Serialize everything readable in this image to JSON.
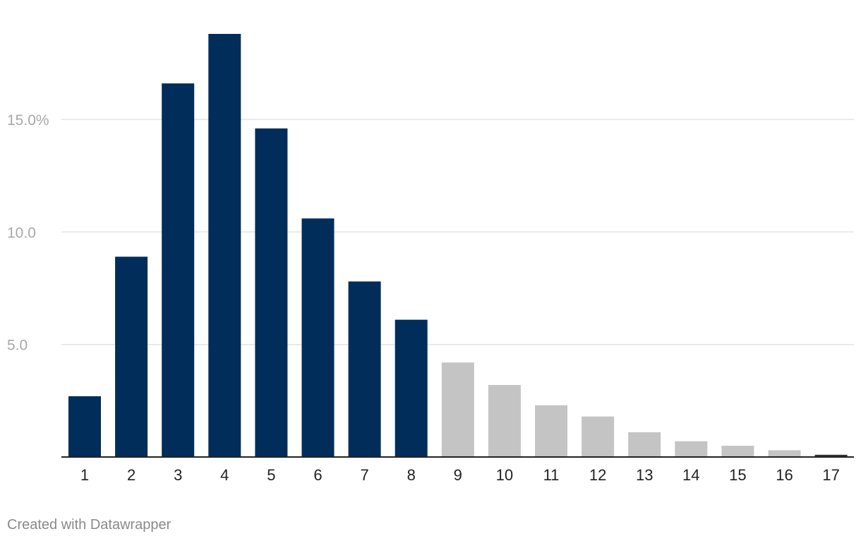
{
  "chart_data": {
    "type": "bar",
    "categories": [
      "1",
      "2",
      "3",
      "4",
      "5",
      "6",
      "7",
      "8",
      "9",
      "10",
      "11",
      "12",
      "13",
      "14",
      "15",
      "16",
      "17"
    ],
    "values": [
      2.7,
      8.9,
      16.6,
      18.8,
      14.6,
      10.6,
      7.8,
      6.1,
      4.2,
      3.2,
      2.3,
      1.8,
      1.1,
      0.7,
      0.5,
      0.3,
      0.1
    ],
    "bar_colors": [
      "#002d5a",
      "#002d5a",
      "#002d5a",
      "#002d5a",
      "#002d5a",
      "#002d5a",
      "#002d5a",
      "#002d5a",
      "#c4c4c4",
      "#c4c4c4",
      "#c4c4c4",
      "#c4c4c4",
      "#c4c4c4",
      "#c4c4c4",
      "#c4c4c4",
      "#c4c4c4",
      "#333333"
    ],
    "y_ticks": [
      {
        "value": 5,
        "label": "5.0"
      },
      {
        "value": 10,
        "label": "10.0"
      },
      {
        "value": 15,
        "label": "15.0%"
      }
    ],
    "ylim": [
      0,
      18.8
    ],
    "grid": true,
    "title": "",
    "xlabel": "",
    "ylabel": ""
  },
  "footer": {
    "credit": "Created with Datawrapper"
  },
  "colors": {
    "highlight": "#002d5a",
    "muted": "#c4c4c4",
    "grid": "#e3e3e3",
    "axis_text": "#a8a8a8"
  }
}
